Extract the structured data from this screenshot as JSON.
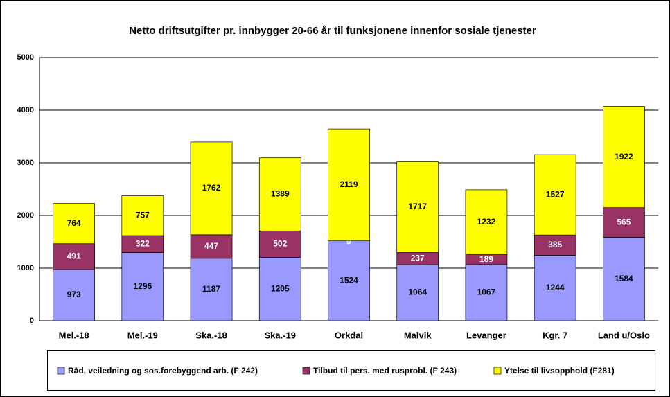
{
  "chart_data": {
    "type": "stacked_bar",
    "title": "Netto driftsutgifter pr. innbygger 20-66 år til funksjonene innenfor sosiale tjenester",
    "categories": [
      "Mel.-18",
      "Mel.-19",
      "Ska.-18",
      "Ska.-19",
      "Orkdal",
      "Malvik",
      "Levanger",
      "Kgr. 7",
      "Land u/Oslo"
    ],
    "series": [
      {
        "name": "Råd, veiledning og sos.forebyggend arb. (F 242)",
        "color": "#9999ff",
        "values": [
          973,
          1296,
          1187,
          1205,
          1524,
          1064,
          1067,
          1244,
          1584
        ]
      },
      {
        "name": "Tilbud til pers. med rusprobl. (F 243)",
        "color": "#993366",
        "values": [
          491,
          322,
          447,
          502,
          0,
          237,
          189,
          385,
          565
        ]
      },
      {
        "name": "Ytelse til livsopphold (F281)",
        "color": "#ffff00",
        "values": [
          764,
          757,
          1762,
          1389,
          2119,
          1717,
          1232,
          1527,
          1922
        ]
      }
    ],
    "ylim": [
      0,
      5000
    ],
    "yticks": [
      0,
      1000,
      2000,
      3000,
      4000,
      5000
    ],
    "grid": true
  }
}
